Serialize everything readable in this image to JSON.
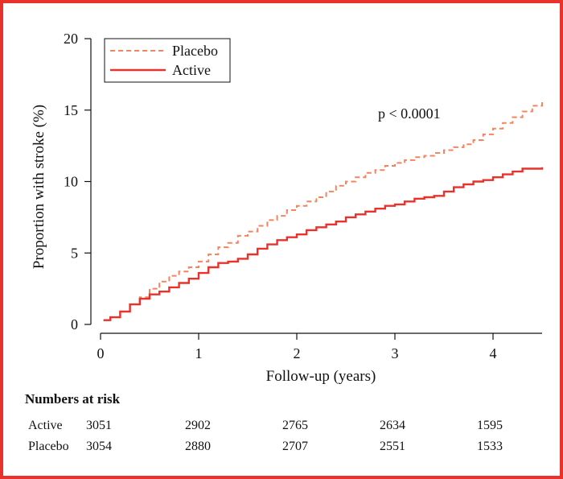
{
  "chart_data": {
    "type": "line",
    "title": "",
    "xlabel": "Follow-up (years)",
    "ylabel": "Proportion with stroke (%)",
    "xlim": [
      0,
      4.5
    ],
    "ylim": [
      0,
      20
    ],
    "xticks": [
      0,
      1,
      2,
      3,
      4
    ],
    "yticks": [
      0,
      5,
      10,
      15,
      20
    ],
    "step": true,
    "grid": false,
    "legend_position": "top-left",
    "annotation": "p < 0.0001",
    "series": [
      {
        "name": "Placebo",
        "style": "dashed",
        "color": "#f4845f",
        "x": [
          0.03,
          0.1,
          0.2,
          0.3,
          0.4,
          0.5,
          0.6,
          0.7,
          0.8,
          0.9,
          1.0,
          1.1,
          1.2,
          1.3,
          1.4,
          1.5,
          1.6,
          1.7,
          1.8,
          1.9,
          2.0,
          2.1,
          2.2,
          2.3,
          2.4,
          2.5,
          2.6,
          2.7,
          2.8,
          2.9,
          3.0,
          3.1,
          3.2,
          3.3,
          3.4,
          3.5,
          3.6,
          3.7,
          3.8,
          3.9,
          4.0,
          4.1,
          4.2,
          4.3,
          4.4,
          4.5
        ],
        "y": [
          0.3,
          0.5,
          0.9,
          1.4,
          1.9,
          2.5,
          3.0,
          3.4,
          3.7,
          4.0,
          4.4,
          4.9,
          5.4,
          5.7,
          6.2,
          6.5,
          6.9,
          7.3,
          7.6,
          8.0,
          8.3,
          8.6,
          8.9,
          9.3,
          9.7,
          10.0,
          10.3,
          10.6,
          10.8,
          11.1,
          11.3,
          11.5,
          11.7,
          11.8,
          12.0,
          12.2,
          12.4,
          12.6,
          12.9,
          13.3,
          13.7,
          14.1,
          14.5,
          14.9,
          15.3,
          15.6
        ]
      },
      {
        "name": "Active",
        "style": "solid",
        "color": "#e8322b",
        "x": [
          0.03,
          0.1,
          0.2,
          0.3,
          0.4,
          0.5,
          0.6,
          0.7,
          0.8,
          0.9,
          1.0,
          1.1,
          1.2,
          1.3,
          1.4,
          1.5,
          1.6,
          1.7,
          1.8,
          1.9,
          2.0,
          2.1,
          2.2,
          2.3,
          2.4,
          2.5,
          2.6,
          2.7,
          2.8,
          2.9,
          3.0,
          3.1,
          3.2,
          3.3,
          3.4,
          3.5,
          3.6,
          3.7,
          3.8,
          3.9,
          4.0,
          4.1,
          4.2,
          4.3,
          4.4,
          4.5
        ],
        "y": [
          0.3,
          0.5,
          0.9,
          1.4,
          1.8,
          2.1,
          2.3,
          2.6,
          2.9,
          3.2,
          3.6,
          4.0,
          4.3,
          4.4,
          4.6,
          4.9,
          5.3,
          5.6,
          5.9,
          6.1,
          6.3,
          6.6,
          6.8,
          7.0,
          7.2,
          7.5,
          7.7,
          7.9,
          8.1,
          8.3,
          8.4,
          8.6,
          8.8,
          8.9,
          9.0,
          9.3,
          9.6,
          9.8,
          10.0,
          10.1,
          10.3,
          10.5,
          10.7,
          10.9,
          10.9,
          11.0
        ]
      }
    ],
    "numbers_at_risk": {
      "title": "Numbers at risk",
      "time_points": [
        0,
        1,
        2,
        3,
        4
      ],
      "rows": [
        {
          "label": "Active",
          "values": [
            "3051",
            "2902",
            "2765",
            "2634",
            "1595"
          ]
        },
        {
          "label": "Placebo",
          "values": [
            "3054",
            "2880",
            "2707",
            "2551",
            "1533"
          ]
        }
      ]
    }
  }
}
